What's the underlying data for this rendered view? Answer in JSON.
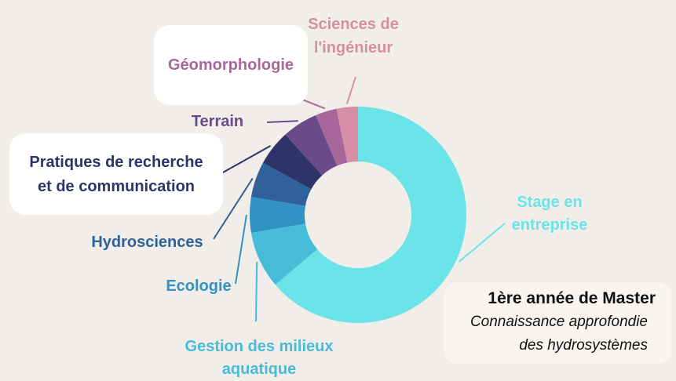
{
  "chart_data": {
    "type": "pie",
    "donut": true,
    "slices": [
      {
        "label": "Stage en\nentreprise",
        "value": 30,
        "color": "#6ae4e8"
      },
      {
        "label": "Gestion des milieux\naquatique",
        "value": 4,
        "color": "#46bcd8"
      },
      {
        "label": "Ecologie",
        "value": 2.5,
        "color": "#3093c3"
      },
      {
        "label": "Hydrosciences",
        "value": 2.5,
        "color": "#2f619b"
      },
      {
        "label": "Pratiques de recherche\net de communication",
        "value": 2.5,
        "color": "#2e3469"
      },
      {
        "label": "Terrain",
        "value": 2.5,
        "color": "#6a4a88"
      },
      {
        "label": "Géomorphologie",
        "value": 1.5,
        "color": "#a8679a"
      },
      {
        "label": "Sciences de\nl'ingénieur",
        "value": 1.5,
        "color": "#d68ea6"
      }
    ]
  },
  "caption": {
    "title": "1ère année de Master",
    "subtitle": "Connaissance approfondie\ndes hydrosystèmes"
  }
}
